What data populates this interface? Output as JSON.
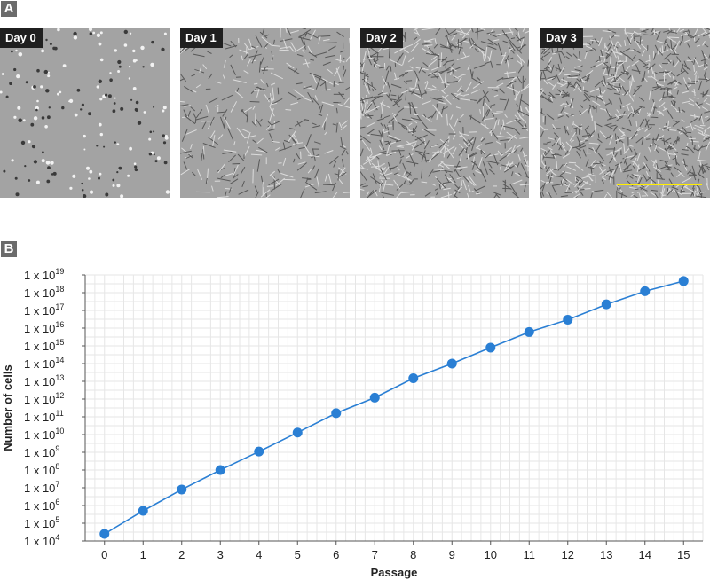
{
  "panels": {
    "a_label": "A",
    "b_label": "B"
  },
  "micrographs": [
    {
      "label": "Day 0",
      "density": 0.12
    },
    {
      "label": "Day 1",
      "density": 0.35
    },
    {
      "label": "Day 2",
      "density": 0.7
    },
    {
      "label": "Day 3",
      "density": 1.0
    }
  ],
  "colors": {
    "series": "#2a7fd4",
    "grid": "#e6e6e6",
    "micrograph_bg": "#a3a3a3",
    "scale_bar": "#ffee00"
  },
  "chart_data": {
    "type": "line",
    "xlabel": "Passage",
    "ylabel": "Number of cells",
    "x": [
      0,
      1,
      2,
      3,
      4,
      5,
      6,
      7,
      8,
      9,
      10,
      11,
      12,
      13,
      14,
      15
    ],
    "series": [
      {
        "values": [
          25000.0,
          500000.0,
          8000000.0,
          100000000.0,
          1100000000.0,
          13000000000.0,
          160000000000.0,
          1200000000000.0,
          15000000000000.0,
          100000000000000.0,
          800000000000000.0,
          6000000000000000.0,
          3e+16,
          2.2e+17,
          1.2e+18,
          4.5e+18
        ]
      }
    ],
    "ylim_exponents": [
      4,
      19
    ],
    "y_scale": "log",
    "xlim": [
      -0.5,
      15.5
    ],
    "x_ticks": [
      "0",
      "1",
      "2",
      "3",
      "4",
      "5",
      "6",
      "7",
      "8",
      "9",
      "10",
      "11",
      "12",
      "13",
      "14",
      "15"
    ],
    "y_tick_mantissa": "1 x 10",
    "y_tick_exponents": [
      "4",
      "5",
      "6",
      "7",
      "8",
      "9",
      "10",
      "11",
      "12",
      "13",
      "14",
      "15",
      "16",
      "17",
      "18",
      "19"
    ],
    "grid": true
  }
}
